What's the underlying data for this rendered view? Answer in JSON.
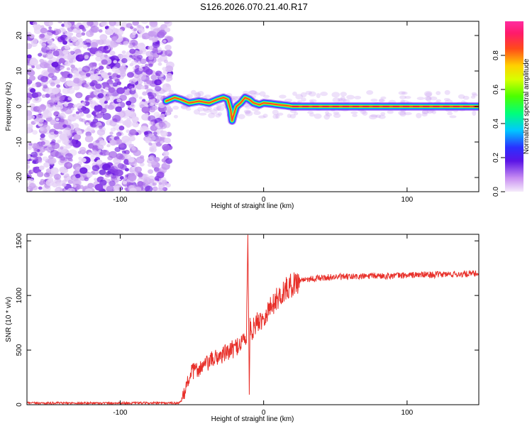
{
  "title": "S126.2026.070.21.40.R17",
  "colors": {
    "snr_line": "#e8302a",
    "ridge_core": "#ff2a2a",
    "noise": "#7a28e8",
    "frame": "#000000"
  },
  "chart_data": [
    {
      "type": "heatmap",
      "name": "spectrogram",
      "xlabel": "Height of straight line (km)",
      "ylabel": "Frequency (Hz)",
      "xlim": [
        -165,
        150
      ],
      "ylim": [
        -24,
        24
      ],
      "xticks": [
        -100,
        0,
        100
      ],
      "yticks": [
        -20,
        -10,
        0,
        10,
        20
      ],
      "xtick_labels": [
        "-100",
        "0",
        "100"
      ],
      "ytick_labels": [
        "-20",
        "-10",
        "0",
        "10",
        "20"
      ],
      "noise_region_x": [
        -165,
        -68
      ],
      "ridge": [
        [
          -68,
          1.5
        ],
        [
          -62,
          2.5
        ],
        [
          -58,
          2.0
        ],
        [
          -52,
          1.0
        ],
        [
          -45,
          1.5
        ],
        [
          -38,
          1.0
        ],
        [
          -32,
          2.0
        ],
        [
          -28,
          2.5
        ],
        [
          -25,
          2.0
        ],
        [
          -23,
          -1.0
        ],
        [
          -22,
          -4.0
        ],
        [
          -21,
          -2.5
        ],
        [
          -19,
          0.0
        ],
        [
          -16,
          1.0
        ],
        [
          -13,
          2.5
        ],
        [
          -10,
          2.0
        ],
        [
          -7,
          1.0
        ],
        [
          -3,
          0.5
        ],
        [
          0,
          1.0
        ],
        [
          5,
          0.8
        ],
        [
          10,
          0.5
        ],
        [
          15,
          0.3
        ],
        [
          20,
          0.0
        ],
        [
          40,
          0.0
        ],
        [
          60,
          0.0
        ],
        [
          80,
          0.0
        ],
        [
          100,
          0.0
        ],
        [
          120,
          0.0
        ],
        [
          140,
          0.0
        ],
        [
          150,
          0.0
        ]
      ],
      "colorbar": {
        "label": "Normalized spectral amplitude",
        "range": [
          0.0,
          1.0
        ],
        "ticks": [
          0.0,
          0.2,
          0.4,
          0.6,
          0.8
        ],
        "tick_labels": [
          "0.0",
          "0.2",
          "0.4",
          "0.6",
          "0.8"
        ]
      }
    },
    {
      "type": "line",
      "name": "snr",
      "xlabel": "Height of straight line (km)",
      "ylabel": "SNR (10 * v/v)",
      "xlim": [
        -165,
        150
      ],
      "ylim": [
        0,
        1560
      ],
      "xticks": [
        -100,
        0,
        100
      ],
      "yticks": [
        0,
        500,
        1000,
        1500
      ],
      "xtick_labels": [
        "-100",
        "0",
        "100"
      ],
      "ytick_labels": [
        "0",
        "500",
        "1000",
        "1500"
      ],
      "series": [
        {
          "name": "SNR",
          "x": [
            -165,
            -120,
            -80,
            -60,
            -57,
            -55,
            -52,
            -50,
            -45,
            -40,
            -35,
            -30,
            -25,
            -20,
            -15,
            -12,
            -11,
            -10,
            -9.5,
            -9,
            -8,
            -5,
            0,
            5,
            10,
            15,
            20,
            25,
            30,
            40,
            50,
            60,
            70,
            80,
            90,
            100,
            110,
            120,
            130,
            140,
            150
          ],
          "y": [
            15,
            15,
            15,
            15,
            30,
            120,
            250,
            300,
            330,
            370,
            420,
            450,
            480,
            520,
            580,
            620,
            1560,
            100,
            700,
            720,
            680,
            750,
            800,
            900,
            980,
            1050,
            1100,
            1140,
            1150,
            1160,
            1170,
            1170,
            1175,
            1180,
            1180,
            1185,
            1190,
            1190,
            1195,
            1195,
            1200
          ]
        }
      ]
    }
  ]
}
